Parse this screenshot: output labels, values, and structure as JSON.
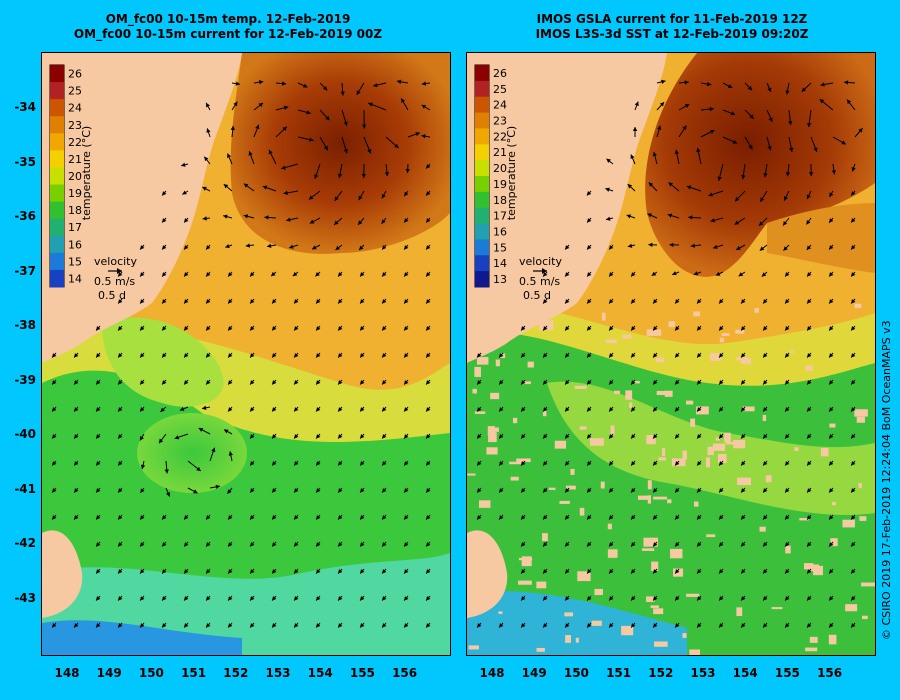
{
  "left_panel": {
    "title_line1": "OM_fc00 10-15m temp. 12-Feb-2019",
    "title_line2": "OM_fc00 10-15m current for 12-Feb-2019 00Z",
    "colorbar_ticks": [
      "26",
      "25",
      "24",
      "23",
      "22",
      "21",
      "20",
      "19",
      "18",
      "17",
      "16",
      "15",
      "14"
    ],
    "colorbar_label": "temperature (°C)",
    "velocity_label": "velocity",
    "velocity_speed": "0.5 m/s",
    "velocity_time": "0.5 d"
  },
  "right_panel": {
    "title_line1": "IMOS GSLA current for 11-Feb-2019 12Z",
    "title_line2": "IMOS L3S-3d SST at 12-Feb-2019 09:20Z",
    "colorbar_ticks": [
      "26",
      "25",
      "24",
      "23",
      "22",
      "21",
      "20",
      "19",
      "18",
      "17",
      "16",
      "15",
      "14",
      "13"
    ],
    "colorbar_label": "temperature (°C)",
    "velocity_label": "velocity",
    "velocity_speed": "0.5 m/s",
    "velocity_time": "0.5 d"
  },
  "axes": {
    "lat_labels": [
      "-34",
      "-35",
      "-36",
      "-37",
      "-38",
      "-39",
      "-40",
      "-41",
      "-42",
      "-43"
    ],
    "lon_labels": [
      "148",
      "149",
      "150",
      "151",
      "152",
      "153",
      "154",
      "155",
      "156"
    ]
  },
  "credit": "© CSIRO 2019   17-Feb-2019 12:24:04 BoM OceanMAPS v3",
  "colors": {
    "background": "#00c8ff",
    "land": "#f7c9a3",
    "warm_core": "#8b2500",
    "warm": "#c86414",
    "orange": "#f0a020",
    "yellow": "#f4d03c",
    "green_yellow": "#b4e040",
    "green": "#3cc83c",
    "cyan": "#28c8dc",
    "blue": "#1e5adc"
  }
}
